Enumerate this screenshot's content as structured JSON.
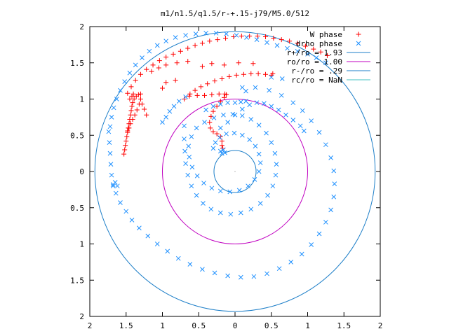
{
  "chart_data": {
    "type": "scatter",
    "title": "m1/n1.5/q1.5/r-+.15-j79/M5.0/512",
    "xlim": [
      -2,
      2
    ],
    "ylim": [
      -2,
      2
    ],
    "xticks": [
      -2,
      -1.5,
      -1,
      -0.5,
      0,
      0.5,
      1,
      1.5,
      2
    ],
    "yticks": [
      -2,
      -1.5,
      -1,
      -0.5,
      0,
      0.5,
      1,
      1.5,
      2
    ],
    "xtick_labels": [
      "2",
      "1.5",
      "1",
      "0.5",
      "0",
      "0.5",
      "1",
      "1.5",
      "2"
    ],
    "ytick_labels": [
      "2",
      "1.5",
      "1",
      "0.5",
      "0",
      "0.5",
      "1",
      "1.5",
      "2"
    ],
    "grid": false,
    "legend_position": "top-right",
    "series": [
      {
        "name": "W phase",
        "marker": "+",
        "color": "#ff0000",
        "points": [
          [
            -1.53,
            0.24
          ],
          [
            -1.52,
            0.3
          ],
          [
            -1.51,
            0.36
          ],
          [
            -1.5,
            0.42
          ],
          [
            -1.49,
            0.48
          ],
          [
            -1.48,
            0.54
          ],
          [
            -1.47,
            0.6
          ],
          [
            -1.46,
            0.66
          ],
          [
            -1.45,
            0.72
          ],
          [
            -1.44,
            0.78
          ],
          [
            -1.43,
            0.84
          ],
          [
            -1.42,
            0.9
          ],
          [
            -1.41,
            0.95
          ],
          [
            -1.39,
            1.0
          ],
          [
            -1.36,
            1.04
          ],
          [
            -1.33,
            1.06
          ],
          [
            -1.3,
            1.07
          ],
          [
            -1.3,
            1.0
          ],
          [
            -1.32,
            0.93
          ],
          [
            -1.35,
            0.85
          ],
          [
            -1.38,
            0.78
          ],
          [
            -1.41,
            0.72
          ],
          [
            -1.44,
            0.66
          ],
          [
            -1.46,
            0.6
          ],
          [
            -1.48,
            0.56
          ],
          [
            -1.3,
            1.0
          ],
          [
            -1.28,
            0.93
          ],
          [
            -1.25,
            0.86
          ],
          [
            -1.22,
            0.78
          ],
          [
            -1.45,
            1.0
          ],
          [
            -1.42,
            1.04
          ],
          [
            -1.4,
            1.07
          ],
          [
            -1.48,
            1.08
          ],
          [
            -1.43,
            1.17
          ],
          [
            -1.37,
            1.26
          ],
          [
            -1.3,
            1.34
          ],
          [
            -1.22,
            1.41
          ],
          [
            -1.13,
            1.47
          ],
          [
            -1.04,
            1.53
          ],
          [
            -0.95,
            1.58
          ],
          [
            -0.85,
            1.62
          ],
          [
            -0.75,
            1.66
          ],
          [
            -0.65,
            1.7
          ],
          [
            -0.55,
            1.74
          ],
          [
            -0.45,
            1.77
          ],
          [
            -0.35,
            1.8
          ],
          [
            -0.24,
            1.82
          ],
          [
            -0.13,
            1.84
          ],
          [
            -0.02,
            1.86
          ],
          [
            0.09,
            1.87
          ],
          [
            0.2,
            1.87
          ],
          [
            0.31,
            1.87
          ],
          [
            0.42,
            1.86
          ],
          [
            0.53,
            1.84
          ],
          [
            0.64,
            1.82
          ],
          [
            0.75,
            1.8
          ],
          [
            0.86,
            1.77
          ],
          [
            0.97,
            1.73
          ],
          [
            1.08,
            1.69
          ],
          [
            1.18,
            1.65
          ],
          [
            1.27,
            1.6
          ],
          [
            -1.15,
            1.38
          ],
          [
            -1.05,
            1.43
          ],
          [
            -0.95,
            1.47
          ],
          [
            -0.8,
            1.5
          ],
          [
            -0.65,
            1.52
          ],
          [
            -0.45,
            1.45
          ],
          [
            -0.32,
            1.49
          ],
          [
            -0.15,
            1.47
          ],
          [
            0.05,
            1.5
          ],
          [
            0.25,
            1.49
          ],
          [
            -1.0,
            1.15
          ],
          [
            -0.95,
            1.23
          ],
          [
            -0.82,
            1.26
          ],
          [
            -0.7,
            1.0
          ],
          [
            -0.62,
            1.07
          ],
          [
            -0.55,
            1.12
          ],
          [
            -0.47,
            1.17
          ],
          [
            -0.38,
            1.21
          ],
          [
            -0.28,
            1.25
          ],
          [
            -0.18,
            1.28
          ],
          [
            -0.08,
            1.31
          ],
          [
            0.02,
            1.33
          ],
          [
            0.12,
            1.34
          ],
          [
            0.22,
            1.35
          ],
          [
            0.32,
            1.35
          ],
          [
            0.42,
            1.34
          ],
          [
            0.5,
            1.33
          ],
          [
            0.52,
            1.35
          ],
          [
            -0.63,
            1.04
          ],
          [
            -0.52,
            1.05
          ],
          [
            -0.42,
            1.05
          ],
          [
            -0.32,
            1.06
          ],
          [
            -0.22,
            1.07
          ],
          [
            -0.14,
            1.07
          ],
          [
            -0.12,
            1.06
          ],
          [
            -0.15,
            1.02
          ],
          [
            -0.2,
            0.97
          ],
          [
            -0.25,
            0.9
          ],
          [
            -0.3,
            0.83
          ],
          [
            -0.33,
            0.76
          ],
          [
            -0.35,
            0.68
          ],
          [
            -0.34,
            0.6
          ],
          [
            -0.3,
            0.55
          ],
          [
            -0.25,
            0.52
          ],
          [
            -0.2,
            0.48
          ],
          [
            -0.18,
            0.42
          ],
          [
            -0.18,
            0.36
          ],
          [
            -0.17,
            0.32
          ]
        ]
      },
      {
        "name": "drho phase",
        "marker": "x",
        "color": "#1e90ff",
        "points": [
          [
            -1.74,
            0.55
          ],
          [
            -1.73,
            0.4
          ],
          [
            -1.72,
            0.25
          ],
          [
            -1.71,
            0.1
          ],
          [
            -1.7,
            -0.05
          ],
          [
            -1.68,
            -0.18
          ],
          [
            -1.64,
            -0.3
          ],
          [
            -1.58,
            -0.43
          ],
          [
            -1.5,
            -0.55
          ],
          [
            -1.42,
            -0.67
          ],
          [
            -1.32,
            -0.78
          ],
          [
            -1.2,
            -0.89
          ],
          [
            -1.07,
            -1.0
          ],
          [
            -0.93,
            -1.1
          ],
          [
            -0.78,
            -1.2
          ],
          [
            -0.62,
            -1.28
          ],
          [
            -0.45,
            -1.35
          ],
          [
            -0.28,
            -1.4
          ],
          [
            -0.1,
            -1.44
          ],
          [
            0.08,
            -1.46
          ],
          [
            0.26,
            -1.45
          ],
          [
            0.44,
            -1.41
          ],
          [
            0.61,
            -1.34
          ],
          [
            0.77,
            -1.25
          ],
          [
            0.92,
            -1.14
          ],
          [
            1.05,
            -1.01
          ],
          [
            1.16,
            -0.86
          ],
          [
            1.25,
            -0.7
          ],
          [
            1.32,
            -0.53
          ],
          [
            1.36,
            -0.35
          ],
          [
            1.37,
            -0.17
          ],
          [
            1.36,
            0.01
          ],
          [
            1.32,
            0.19
          ],
          [
            1.25,
            0.37
          ],
          [
            1.16,
            0.54
          ],
          [
            1.05,
            0.7
          ],
          [
            0.93,
            0.84
          ],
          [
            0.8,
            0.95
          ],
          [
            0.64,
            1.05
          ],
          [
            0.47,
            1.12
          ],
          [
            0.28,
            1.16
          ],
          [
            0.1,
            1.16
          ],
          [
            -1.72,
            0.62
          ],
          [
            -1.7,
            0.75
          ],
          [
            -1.67,
            0.88
          ],
          [
            -1.63,
            1.0
          ],
          [
            -1.58,
            1.12
          ],
          [
            -1.52,
            1.24
          ],
          [
            -1.45,
            1.36
          ],
          [
            -1.37,
            1.47
          ],
          [
            -1.28,
            1.57
          ],
          [
            -1.18,
            1.66
          ],
          [
            -1.07,
            1.74
          ],
          [
            -0.95,
            1.8
          ],
          [
            -0.82,
            1.85
          ],
          [
            -0.68,
            1.88
          ],
          [
            -0.54,
            1.9
          ],
          [
            -0.4,
            1.91
          ],
          [
            -0.26,
            1.91
          ],
          [
            -0.12,
            1.9
          ],
          [
            0.02,
            1.88
          ],
          [
            0.16,
            1.85
          ],
          [
            0.3,
            1.82
          ],
          [
            0.44,
            1.78
          ],
          [
            0.58,
            1.74
          ],
          [
            0.72,
            1.7
          ],
          [
            0.86,
            1.66
          ],
          [
            1.0,
            1.62
          ],
          [
            1.12,
            1.57
          ],
          [
            1.25,
            1.5
          ],
          [
            -1.68,
            -0.2
          ],
          [
            -1.65,
            -0.15
          ],
          [
            -1.62,
            -0.2
          ],
          [
            -1.0,
            0.68
          ],
          [
            -0.95,
            0.75
          ],
          [
            -0.9,
            0.83
          ],
          [
            -0.84,
            0.9
          ],
          [
            -0.77,
            0.97
          ],
          [
            -0.68,
            1.03
          ],
          [
            -0.7,
            0.63
          ],
          [
            -0.7,
            0.45
          ],
          [
            -0.69,
            0.28
          ],
          [
            -0.68,
            0.11
          ],
          [
            -0.65,
            -0.05
          ],
          [
            -0.6,
            -0.2
          ],
          [
            -0.53,
            -0.33
          ],
          [
            -0.44,
            -0.44
          ],
          [
            -0.33,
            -0.52
          ],
          [
            -0.2,
            -0.57
          ],
          [
            -0.06,
            -0.59
          ],
          [
            0.08,
            -0.57
          ],
          [
            0.22,
            -0.52
          ],
          [
            0.35,
            -0.44
          ],
          [
            0.45,
            -0.33
          ],
          [
            0.52,
            -0.2
          ],
          [
            0.56,
            -0.05
          ],
          [
            0.57,
            0.1
          ],
          [
            0.55,
            0.25
          ],
          [
            0.5,
            0.4
          ],
          [
            0.43,
            0.53
          ],
          [
            0.33,
            0.64
          ],
          [
            0.22,
            0.72
          ],
          [
            0.1,
            0.77
          ],
          [
            -0.03,
            0.79
          ],
          [
            -0.16,
            0.78
          ],
          [
            -0.29,
            0.74
          ],
          [
            -0.42,
            0.68
          ],
          [
            -0.53,
            0.6
          ],
          [
            -0.6,
            0.48
          ],
          [
            -0.64,
            0.35
          ],
          [
            -0.63,
            0.2
          ],
          [
            -0.59,
            0.06
          ],
          [
            -0.52,
            -0.06
          ],
          [
            -0.43,
            -0.16
          ],
          [
            -0.32,
            -0.23
          ],
          [
            -0.2,
            -0.27
          ],
          [
            -0.07,
            -0.28
          ],
          [
            0.06,
            -0.26
          ],
          [
            0.18,
            -0.2
          ],
          [
            0.27,
            -0.11
          ],
          [
            0.33,
            0.0
          ],
          [
            0.35,
            0.12
          ],
          [
            0.33,
            0.24
          ],
          [
            0.28,
            0.35
          ],
          [
            0.2,
            0.44
          ],
          [
            0.1,
            0.5
          ],
          [
            -0.01,
            0.53
          ],
          [
            -0.12,
            0.52
          ],
          [
            -0.21,
            0.47
          ],
          [
            -0.27,
            0.4
          ],
          [
            -0.3,
            0.32
          ],
          [
            -0.2,
            0.28
          ],
          [
            -0.16,
            0.3
          ],
          [
            -0.14,
            0.26
          ],
          [
            -0.18,
            0.25
          ],
          [
            -0.2,
            0.6
          ],
          [
            -0.1,
            0.68
          ],
          [
            0.0,
            0.78
          ],
          [
            0.1,
            0.86
          ],
          [
            0.2,
            0.92
          ],
          [
            0.3,
            0.95
          ],
          [
            0.4,
            0.94
          ],
          [
            0.5,
            0.9
          ],
          [
            0.6,
            0.85
          ],
          [
            0.7,
            0.78
          ],
          [
            0.8,
            0.71
          ],
          [
            0.9,
            0.63
          ],
          [
            0.95,
            0.56
          ],
          [
            -0.4,
            0.85
          ],
          [
            -0.3,
            0.9
          ],
          [
            -0.2,
            0.93
          ],
          [
            -0.1,
            0.95
          ],
          [
            0.0,
            0.95
          ],
          [
            0.08,
            0.96
          ],
          [
            0.15,
            0.97
          ],
          [
            0.15,
            1.11
          ],
          [
            0.5,
            1.3
          ],
          [
            0.65,
            1.28
          ]
        ]
      }
    ],
    "circles": [
      {
        "name": "r+/ro = 1.93",
        "radius": 1.93,
        "color": "#1e7fc8"
      },
      {
        "name": "ro/ro = 1.00",
        "radius": 1.0,
        "color": "#c000c0"
      },
      {
        "name": "r-/ro = .29",
        "radius": 0.29,
        "color": "#1e7fc8"
      },
      {
        "name": "rc/ro = NaN",
        "radius": null,
        "color": "#40c0c0"
      }
    ]
  }
}
